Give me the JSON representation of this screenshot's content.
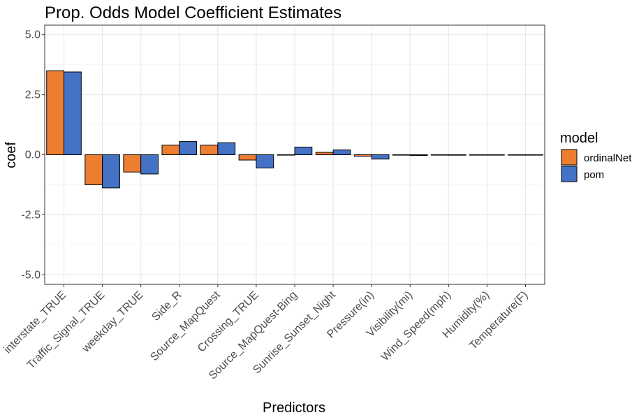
{
  "chart_data": {
    "type": "bar",
    "title": "Prop. Odds Model Coefficient Estimates",
    "xlabel": "Predictors",
    "ylabel": "coef",
    "ylim": [
      -5.4,
      5.4
    ],
    "yticks": [
      "5.0",
      "2.5",
      "0.0",
      "-2.5",
      "-5.0"
    ],
    "ytick_values": [
      5.0,
      2.5,
      0.0,
      -2.5,
      -5.0
    ],
    "grid": true,
    "legend": {
      "title": "model",
      "position": "right"
    },
    "categories": [
      "interstate_TRUE",
      "Traffic_Signal_TRUE",
      "weekday_TRUE",
      "Side_R",
      "Source_MapQuest",
      "Crossing_TRUE",
      "Source_MapQuest-Bing",
      "Sunrise_Sunset_Night",
      "Pressure(in)",
      "Visibility(mi)",
      "Wind_Speed(mph)",
      "Humidity(%)",
      "Temperature(F)"
    ],
    "series": [
      {
        "name": "ordinalNet",
        "color": "#ED7D31",
        "values": [
          3.5,
          -1.25,
          -0.72,
          0.4,
          0.4,
          -0.22,
          0.0,
          0.1,
          -0.06,
          0.0,
          0.0,
          0.0,
          0.0
        ]
      },
      {
        "name": "pom",
        "color": "#4472C4",
        "values": [
          3.45,
          -1.38,
          -0.8,
          0.55,
          0.5,
          -0.55,
          0.32,
          0.2,
          -0.18,
          -0.03,
          -0.02,
          -0.01,
          -0.01
        ]
      }
    ]
  }
}
